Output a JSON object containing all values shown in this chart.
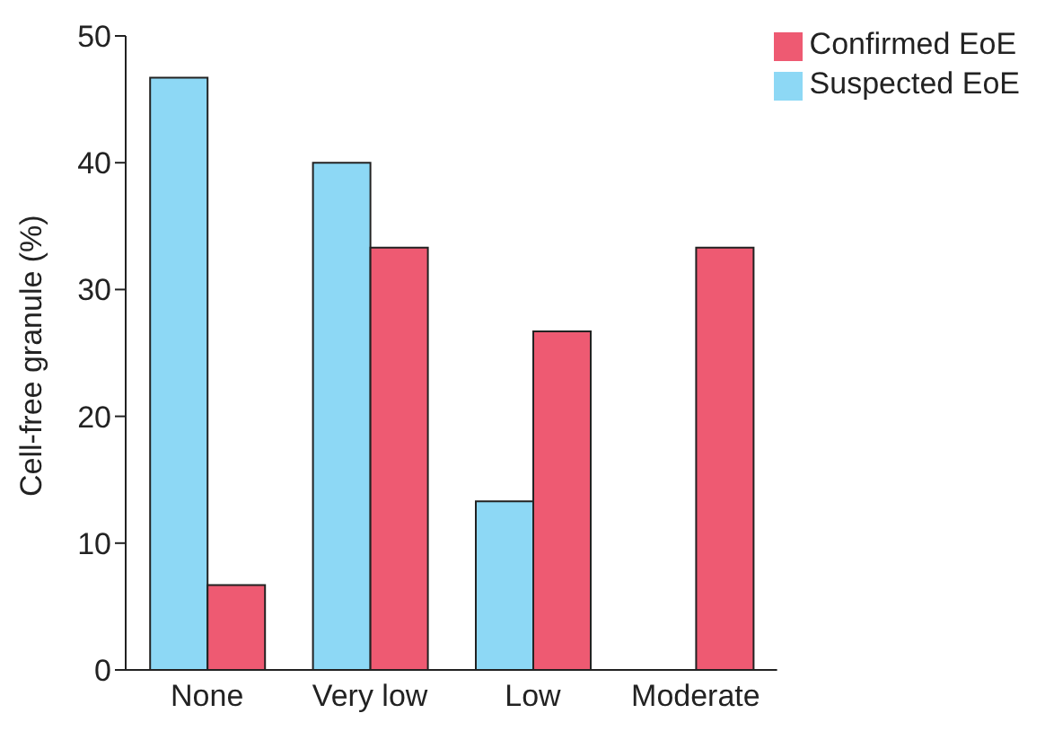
{
  "chart_data": {
    "type": "bar",
    "ylabel": "Cell-free granule (%)",
    "categories": [
      "None",
      "Very low",
      "Low",
      "Moderate"
    ],
    "series": [
      {
        "name": "Suspected EoE",
        "color": "#8dd8f5",
        "values": [
          46.7,
          40,
          13.3,
          0
        ]
      },
      {
        "name": "Confirmed EoE",
        "color": "#ee5a72",
        "values": [
          6.7,
          33.3,
          26.7,
          33.3
        ]
      }
    ],
    "ylim": [
      0,
      50
    ],
    "yticks": [
      0,
      10,
      20,
      30,
      40,
      50
    ],
    "grid": false,
    "legend": "top right"
  }
}
